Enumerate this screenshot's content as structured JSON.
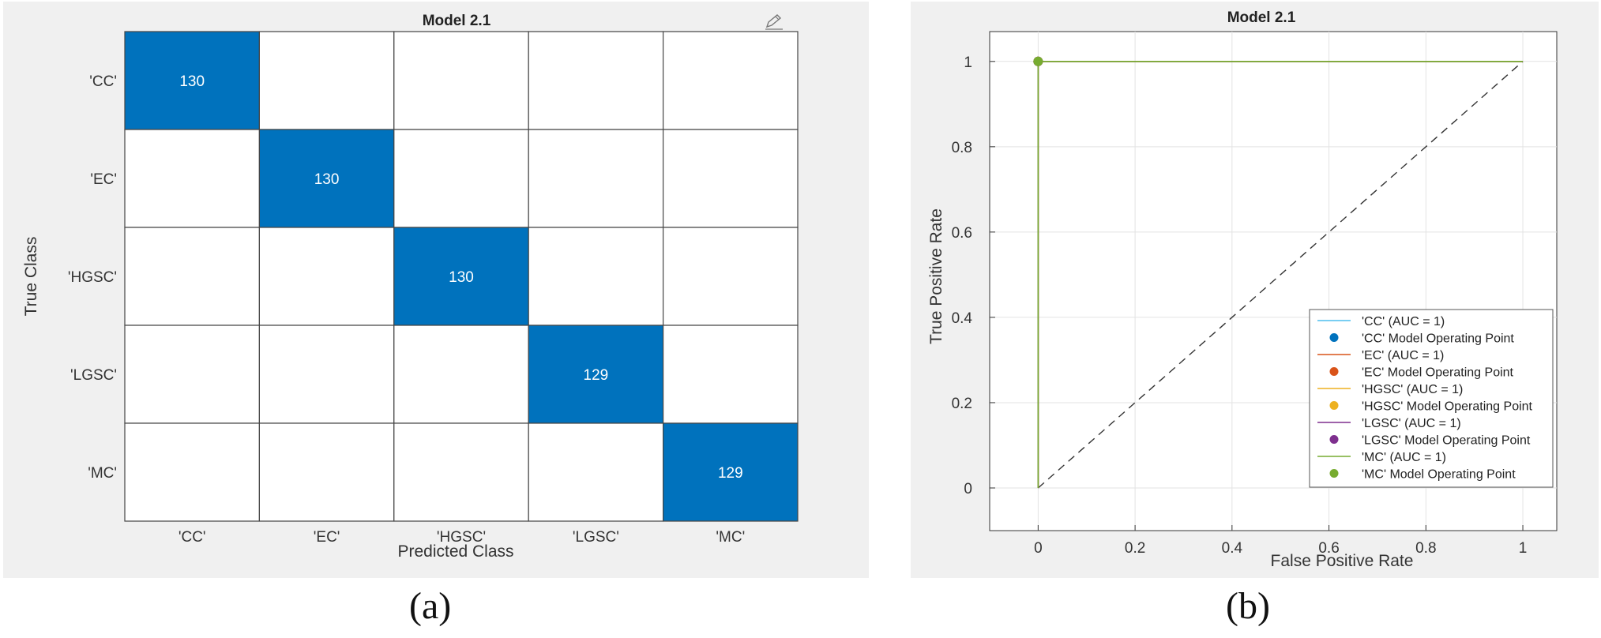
{
  "panel_a": {
    "edit_icon": "edit-pen-icon"
  },
  "chart_data": [
    {
      "type": "heatmap",
      "title": "Model 2.1",
      "xlabel": "Predicted Class",
      "ylabel": "True Class",
      "categories": [
        "'CC'",
        "'EC'",
        "'HGSC'",
        "'LGSC'",
        "'MC'"
      ],
      "matrix": [
        [
          130,
          0,
          0,
          0,
          0
        ],
        [
          0,
          130,
          0,
          0,
          0
        ],
        [
          0,
          0,
          130,
          0,
          0
        ],
        [
          0,
          0,
          0,
          129,
          0
        ],
        [
          0,
          0,
          0,
          0,
          129
        ]
      ],
      "fill_color": "#0072bd",
      "caption": "(a)"
    },
    {
      "type": "line",
      "title": "Model 2.1",
      "xlabel": "False Positive Rate",
      "ylabel": "True Positive Rate",
      "xlim": [
        -0.1,
        1.07
      ],
      "ylim": [
        -0.1,
        1.07
      ],
      "xticks": [
        0,
        0.2,
        0.4,
        0.6,
        0.8,
        1
      ],
      "yticks": [
        0,
        0.2,
        0.4,
        0.6,
        0.8,
        1
      ],
      "grid": true,
      "series": [
        {
          "name": "'CC' (AUC = 1)",
          "color": "#4dbeee",
          "x": [
            0,
            0,
            1
          ],
          "y": [
            0,
            1,
            1
          ],
          "point_name": "'CC' Model Operating Point",
          "point_color": "#0072bd",
          "point": [
            0,
            1
          ]
        },
        {
          "name": "'EC' (AUC = 1)",
          "color": "#d95319",
          "x": [
            0,
            0,
            1
          ],
          "y": [
            0,
            1,
            1
          ],
          "point_name": "'EC' Model Operating Point",
          "point_color": "#d95319",
          "point": [
            0,
            1
          ]
        },
        {
          "name": "'HGSC' (AUC = 1)",
          "color": "#edb120",
          "x": [
            0,
            0,
            1
          ],
          "y": [
            0,
            1,
            1
          ],
          "point_name": "'HGSC' Model Operating Point",
          "point_color": "#edb120",
          "point": [
            0,
            1
          ]
        },
        {
          "name": "'LGSC' (AUC = 1)",
          "color": "#7e2f8e",
          "x": [
            0,
            0,
            1
          ],
          "y": [
            0,
            1,
            1
          ],
          "point_name": "'LGSC' Model Operating Point",
          "point_color": "#7e2f8e",
          "point": [
            0,
            1
          ]
        },
        {
          "name": "'MC' (AUC = 1)",
          "color": "#77ac30",
          "x": [
            0,
            0,
            1
          ],
          "y": [
            0,
            1,
            1
          ],
          "point_name": "'MC' Model Operating Point",
          "point_color": "#77ac30",
          "point": [
            0,
            1
          ]
        }
      ],
      "reference_line": {
        "x": [
          0,
          1
        ],
        "y": [
          0,
          1
        ],
        "style": "dashed",
        "color": "#333333"
      },
      "legend_position": "bottom-right",
      "caption": "(b)"
    }
  ]
}
